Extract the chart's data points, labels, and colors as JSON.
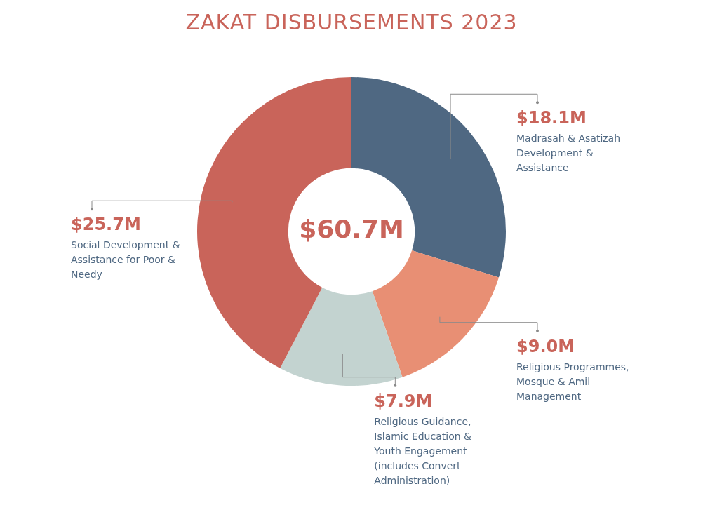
{
  "chart_data": {
    "type": "donut",
    "title": "ZAKAT DISBURSEMENTS 2023",
    "categories": [
      "Madrasah & Asatizah Development & Assistance",
      "Religious Programmes, Mosque & Amil Management",
      "Religious Guidance, Islamic Education & Youth Engagement (includes Convert Administration)",
      "Social Development & Assistance for Poor & Needy"
    ],
    "values": [
      18.1,
      9.0,
      7.9,
      25.7
    ],
    "value_labels": [
      "$18.1M",
      "$9.0M",
      "$7.9M",
      "$25.7M"
    ],
    "colors": [
      "#4f6882",
      "#e88f74",
      "#c3d3d0",
      "#c9645a"
    ],
    "annotations": [
      "$60.7M"
    ],
    "legend": false
  }
}
